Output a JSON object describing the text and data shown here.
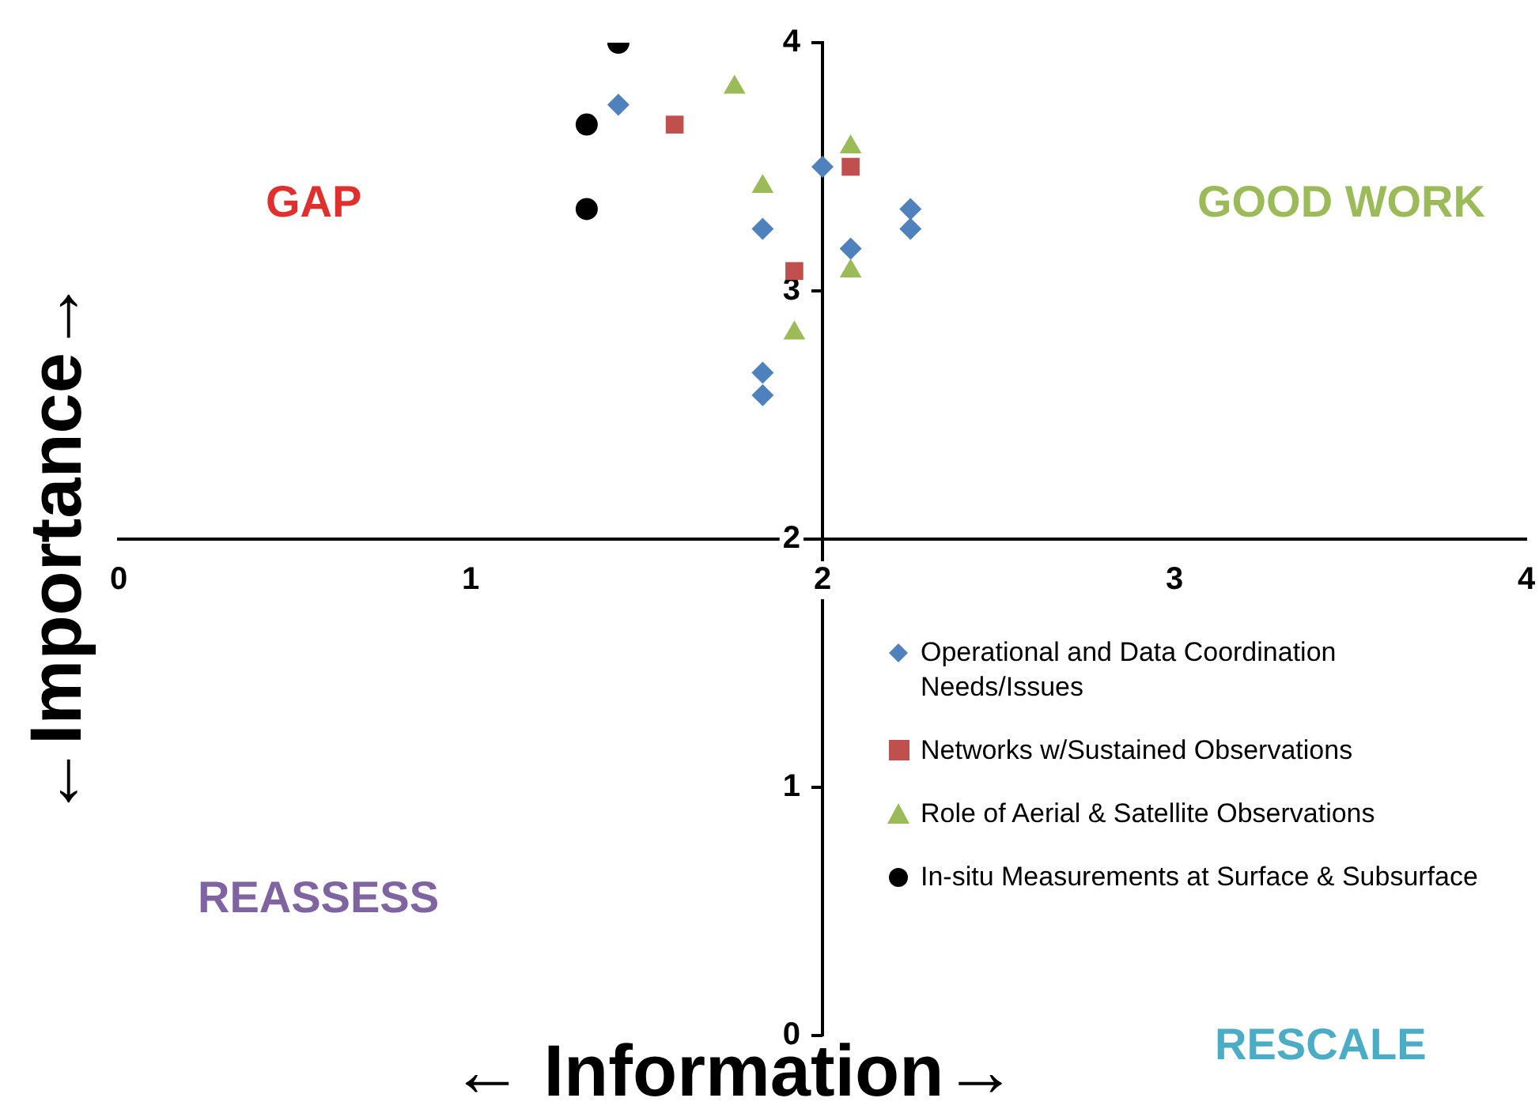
{
  "chart_data": {
    "type": "scatter",
    "xlabel": "← Information→",
    "ylabel": "←Importance→",
    "xlim": [
      0,
      4
    ],
    "xticks": [
      0,
      1,
      2,
      3,
      4
    ],
    "ylim": [
      0,
      4
    ],
    "yticks": [
      0,
      1,
      2,
      3,
      4
    ],
    "grid": false,
    "legend": "bottom right",
    "annotations": [
      "GAP",
      "GOOD WORK",
      "REASSESS",
      "RESCALE"
    ],
    "series": [
      {
        "name": "Operational and Data Coordination Needs/Issues",
        "color": "#4f81bd",
        "marker": "diamond",
        "x": [
          1.42,
          2.0,
          1.83,
          2.25,
          2.25,
          2.08,
          1.83,
          1.83
        ],
        "values": [
          3.75,
          3.5,
          3.25,
          3.33,
          3.25,
          3.17,
          2.67,
          2.58
        ]
      },
      {
        "name": "Networks w/Sustained Observations",
        "color": "#c0504d",
        "marker": "square",
        "x": [
          1.58,
          2.08,
          1.92
        ],
        "values": [
          3.67,
          3.5,
          3.08
        ]
      },
      {
        "name": "Role of Aerial & Satellite Observations",
        "color": "#9bbb59",
        "marker": "triangle",
        "x": [
          1.75,
          2.08,
          1.83,
          2.08,
          1.92
        ],
        "values": [
          3.82,
          3.58,
          3.42,
          3.08,
          2.83
        ]
      },
      {
        "name": "In-situ Measurements at Surface & Subsurface",
        "color": "#000000",
        "marker": "circle",
        "x": [
          1.42,
          1.33,
          1.33
        ],
        "values": [
          4.0,
          3.67,
          3.33
        ]
      }
    ]
  }
}
